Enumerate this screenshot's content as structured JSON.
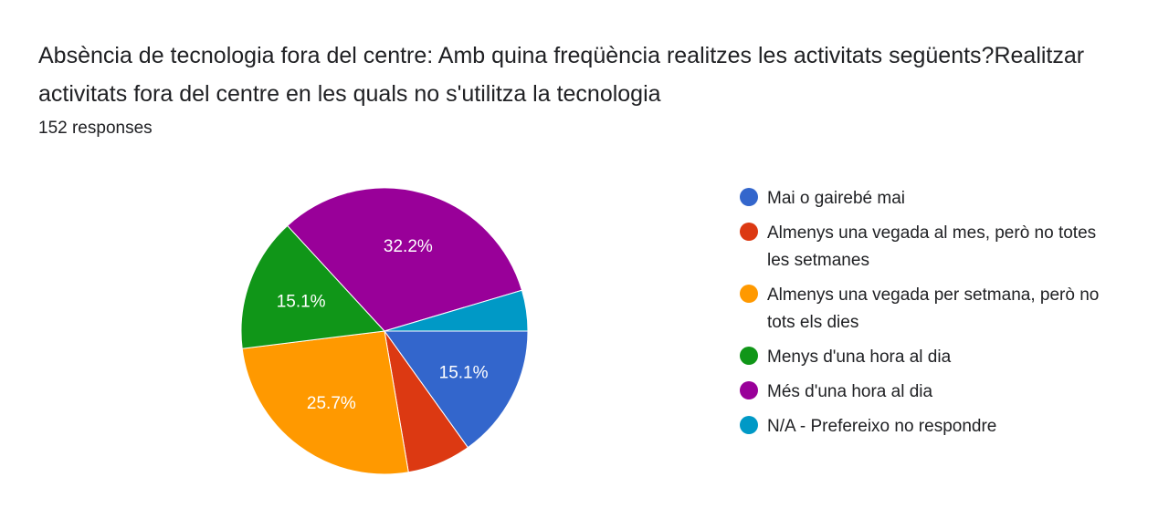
{
  "chart_data": {
    "type": "pie",
    "title": "Absència de tecnologia fora del centre: Amb quina freqüència realitzes les activitats següents?Realitzar activitats fora del centre en les quals no s'utilitza la tecnologia",
    "subtitle": "152 responses",
    "legend_position": "right",
    "slices": [
      {
        "label": "Mai o gairebé mai",
        "value": 15.1,
        "display": "15.1%",
        "color": "#3366cc"
      },
      {
        "label": "Almenys una vegada al mes, però no totes les setmanes",
        "value": 7.2,
        "display": "",
        "color": "#dc3912"
      },
      {
        "label": "Almenys una vegada per setmana, però no tots els dies",
        "value": 25.7,
        "display": "25.7%",
        "color": "#ff9900"
      },
      {
        "label": "Menys d'una hora al dia",
        "value": 15.1,
        "display": "15.1%",
        "color": "#109618"
      },
      {
        "label": "Més d'una hora al dia",
        "value": 32.2,
        "display": "32.2%",
        "color": "#990099"
      },
      {
        "label": "N/A - Prefereixo no respondre",
        "value": 4.6,
        "display": "",
        "color": "#0099c6"
      }
    ]
  }
}
